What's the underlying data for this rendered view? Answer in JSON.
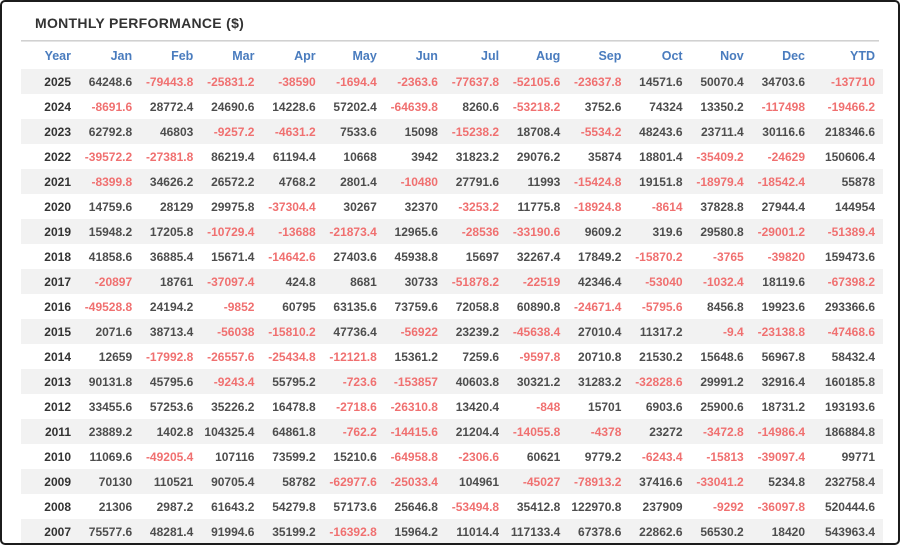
{
  "title": "MONTHLY PERFORMANCE ($)",
  "colors": {
    "header_text_blue": "#4a7cbe",
    "negative_value_red": "#f07070",
    "positive_value_gray": "#4d4d4d",
    "year_text_dark": "#333333",
    "alt_row_background": "#f2f2f2",
    "frame_border": "#1c1c1c"
  },
  "table": {
    "columns": [
      "Year",
      "Jan",
      "Feb",
      "Mar",
      "Apr",
      "May",
      "Jun",
      "Jul",
      "Aug",
      "Sep",
      "Oct",
      "Nov",
      "Dec",
      "YTD"
    ],
    "rows": [
      {
        "year": "2025",
        "values": [
          64248.6,
          -79443.8,
          -25831.2,
          -38590,
          -1694.4,
          -2363.6,
          -77637.8,
          -52105.6,
          -23637.8,
          14571.6,
          50070.4,
          34703.6,
          -137710
        ]
      },
      {
        "year": "2024",
        "values": [
          -8691.6,
          28772.4,
          24690.6,
          14228.6,
          57202.4,
          -64639.8,
          8260.6,
          -53218.2,
          3752.6,
          74324,
          13350.2,
          -117498,
          -19466.2
        ]
      },
      {
        "year": "2023",
        "values": [
          62792.8,
          46803,
          -9257.2,
          -4631.2,
          7533.6,
          15098,
          -15238.2,
          18708.4,
          -5534.2,
          48243.6,
          23711.4,
          30116.6,
          218346.6
        ]
      },
      {
        "year": "2022",
        "values": [
          -39572.2,
          -27381.8,
          86219.4,
          61194.4,
          10668,
          3942,
          31823.2,
          29076.2,
          35874,
          18801.4,
          -35409.2,
          -24629,
          150606.4
        ]
      },
      {
        "year": "2021",
        "values": [
          -8399.8,
          34626.2,
          26572.2,
          4768.2,
          2801.4,
          -10480,
          27791.6,
          11993,
          -15424.8,
          19151.8,
          -18979.4,
          -18542.4,
          55878
        ]
      },
      {
        "year": "2020",
        "values": [
          14759.6,
          28129,
          29975.8,
          -37304.4,
          30267,
          32370,
          -3253.2,
          11775.8,
          -18924.8,
          -8614,
          37828.8,
          27944.4,
          144954
        ]
      },
      {
        "year": "2019",
        "values": [
          15948.2,
          17205.8,
          -10729.4,
          -13688,
          -21873.4,
          12965.6,
          -28536,
          -33190.6,
          9609.2,
          319.6,
          29580.8,
          -29001.2,
          -51389.4
        ]
      },
      {
        "year": "2018",
        "values": [
          41858.6,
          36885.4,
          15671.4,
          -14642.6,
          27403.6,
          45938.8,
          15697,
          32267.4,
          17849.2,
          -15870.2,
          -3765,
          -39820,
          159473.6
        ]
      },
      {
        "year": "2017",
        "values": [
          -20897,
          18761,
          -37097.4,
          424.8,
          8681,
          30733,
          -51878.2,
          -22519,
          42346.4,
          -53040,
          -1032.4,
          18119.6,
          -67398.2
        ]
      },
      {
        "year": "2016",
        "values": [
          -49528.8,
          24194.2,
          -9852,
          60795,
          63135.6,
          73759.6,
          72058.8,
          60890.8,
          -24671.4,
          -5795.6,
          8456.8,
          19923.6,
          293366.6
        ]
      },
      {
        "year": "2015",
        "values": [
          2071.6,
          38713.4,
          -56038,
          -15810.2,
          47736.4,
          -56922,
          23239.2,
          -45638.4,
          27010.4,
          11317.2,
          -9.4,
          -23138.8,
          -47468.6
        ]
      },
      {
        "year": "2014",
        "values": [
          12659,
          -17992.8,
          -26557.6,
          -25434.8,
          -12121.8,
          15361.2,
          7259.6,
          -9597.8,
          20710.8,
          21530.2,
          15648.6,
          56967.8,
          58432.4
        ]
      },
      {
        "year": "2013",
        "values": [
          90131.8,
          45795.6,
          -9243.4,
          55795.2,
          -723.6,
          -153857,
          40603.8,
          30321.2,
          31283.2,
          -32828.6,
          29991.2,
          32916.4,
          160185.8
        ]
      },
      {
        "year": "2012",
        "values": [
          33455.6,
          57253.6,
          35226.2,
          16478.8,
          -2718.6,
          -26310.8,
          13420.4,
          -848,
          15701,
          6903.6,
          25900.6,
          18731.2,
          193193.6
        ]
      },
      {
        "year": "2011",
        "values": [
          23889.2,
          1402.8,
          104325.4,
          64861.8,
          -762.2,
          -14415.6,
          21204.4,
          -14055.8,
          -4378,
          23272,
          -3472.8,
          -14986.4,
          186884.8
        ]
      },
      {
        "year": "2010",
        "values": [
          11069.6,
          -49205.4,
          107116,
          73599.2,
          15210.6,
          -64958.8,
          -2306.6,
          60621,
          9779.2,
          -6243.4,
          -15813,
          -39097.4,
          99771
        ]
      },
      {
        "year": "2009",
        "values": [
          70130,
          110521,
          90705.4,
          58782,
          -62977.6,
          -25033.4,
          104961,
          -45027,
          -78913.2,
          37416.6,
          -33041.2,
          5234.8,
          232758.4
        ]
      },
      {
        "year": "2008",
        "values": [
          21306,
          2987.2,
          61643.2,
          54279.8,
          57173.6,
          25646.8,
          -53494.8,
          35412.8,
          122970.8,
          237909,
          -9292,
          -36097.8,
          520444.6
        ]
      },
      {
        "year": "2007",
        "values": [
          75577.6,
          48281.4,
          91994.6,
          35199.2,
          -16392.8,
          15964.2,
          11014.4,
          117133.4,
          67378.6,
          22862.6,
          56530.2,
          18420,
          543963.4
        ]
      }
    ]
  }
}
